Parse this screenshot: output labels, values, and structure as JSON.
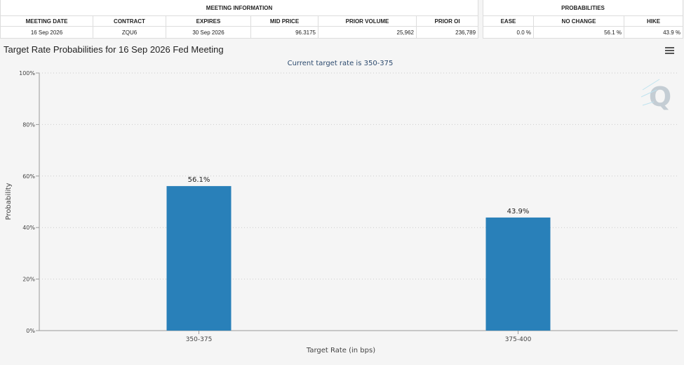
{
  "meeting_info": {
    "group_title": "MEETING INFORMATION",
    "headers": [
      "MEETING DATE",
      "CONTRACT",
      "EXPIRES",
      "MID PRICE",
      "PRIOR VOLUME",
      "PRIOR OI"
    ],
    "row": {
      "meeting_date": "16 Sep 2026",
      "contract": "ZQU6",
      "expires": "30 Sep 2026",
      "mid_price": "96.3175",
      "prior_volume": "25,962",
      "prior_oi": "236,789"
    }
  },
  "probabilities": {
    "group_title": "PROBABILITIES",
    "headers": [
      "EASE",
      "NO CHANGE",
      "HIKE"
    ],
    "row": {
      "ease": "0.0 %",
      "no_change": "56.1 %",
      "hike": "43.9 %"
    }
  },
  "menu_icon": "hamburger-menu-icon",
  "watermark_icon": "cme-q-logo-icon",
  "chart_data": {
    "type": "bar",
    "title": "Target Rate Probabilities for 16 Sep 2026 Fed Meeting",
    "subtitle": "Current target rate is 350-375",
    "xlabel": "Target Rate (in bps)",
    "ylabel": "Probability",
    "categories": [
      "350-375",
      "375-400"
    ],
    "values": [
      56.1,
      43.9
    ],
    "data_labels": [
      "56.1%",
      "43.9%"
    ],
    "ylim": [
      0,
      100
    ],
    "yticks": [
      "0%",
      "20%",
      "40%",
      "60%",
      "80%",
      "100%"
    ],
    "bar_color": "#2980b9",
    "subtitle_color": "#2c4a6e",
    "grid": true
  }
}
